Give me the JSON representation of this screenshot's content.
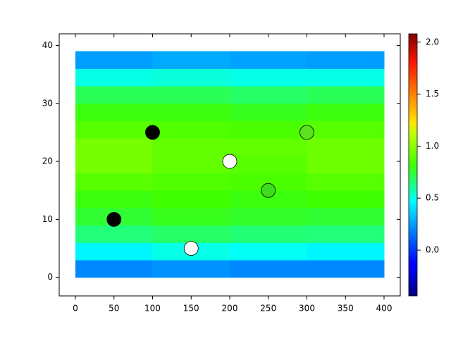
{
  "chart_data": {
    "type": "heatmap-scatter",
    "colormap": "jet",
    "xedges": [
      0,
      100,
      200,
      300,
      400
    ],
    "yedges": [
      0,
      3,
      6,
      9,
      12,
      15,
      18,
      21,
      24,
      27,
      30,
      33,
      36,
      39
    ],
    "z": [
      [
        0.2,
        0.22,
        0.2,
        0.2
      ],
      [
        0.45,
        0.5,
        0.48,
        0.45
      ],
      [
        0.65,
        0.68,
        0.66,
        0.65
      ],
      [
        0.75,
        0.78,
        0.76,
        0.75
      ],
      [
        0.8,
        0.82,
        0.8,
        0.82
      ],
      [
        0.88,
        0.86,
        0.85,
        0.88
      ],
      [
        0.95,
        0.9,
        0.88,
        0.93
      ],
      [
        0.95,
        0.9,
        0.9,
        0.93
      ],
      [
        0.88,
        0.86,
        0.85,
        0.88
      ],
      [
        0.8,
        0.8,
        0.78,
        0.8
      ],
      [
        0.7,
        0.7,
        0.68,
        0.7
      ],
      [
        0.5,
        0.52,
        0.5,
        0.5
      ],
      [
        0.25,
        0.28,
        0.26,
        0.25
      ]
    ],
    "points": {
      "x": [
        50,
        100,
        150,
        200,
        250,
        300
      ],
      "y": [
        10,
        25,
        5,
        20,
        15,
        25
      ],
      "colors": [
        "#000000",
        "#000000",
        "#ffffff",
        "#ffffff",
        "#3ddc1e",
        "#5ce21a"
      ]
    },
    "xlim": [
      -21,
      421
    ],
    "ylim": [
      -3.2,
      42
    ],
    "xticks": [
      0,
      50,
      100,
      150,
      200,
      250,
      300,
      350,
      400
    ],
    "yticks": [
      0,
      10,
      20,
      30,
      40
    ],
    "clim": [
      -0.44,
      2.08
    ],
    "cticks": [
      {
        "value": 0,
        "label": "0.0"
      },
      {
        "value": 0.5,
        "label": "0.5"
      },
      {
        "value": 1,
        "label": "1.0"
      },
      {
        "value": 1.5,
        "label": "1.5"
      },
      {
        "value": 2,
        "label": "2.0"
      }
    ]
  }
}
